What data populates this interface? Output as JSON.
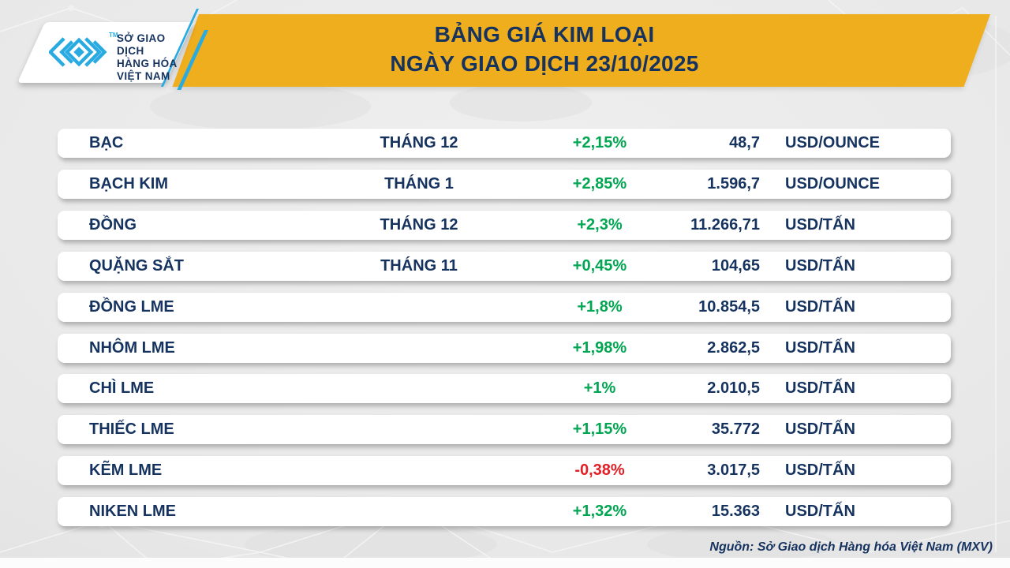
{
  "logo": {
    "org_line1": "SỞ GIAO DỊCH",
    "org_line2": "HÀNG HÓA",
    "org_line3": "VIỆT NAM",
    "tm": "TM"
  },
  "chart_data": {
    "type": "table",
    "title": "BẢNG GIÁ KIM LOẠI",
    "subtitle": "NGÀY GIAO DỊCH 23/10/2025",
    "legend_position": "none",
    "rows": [
      {
        "name": "BẠC",
        "month": "THÁNG 12",
        "change": "+2,15%",
        "price": "48,7",
        "unit": "USD/OUNCE",
        "direction": "up"
      },
      {
        "name": "BẠCH KIM",
        "month": "THÁNG 1",
        "change": "+2,85%",
        "price": "1.596,7",
        "unit": "USD/OUNCE",
        "direction": "up"
      },
      {
        "name": "ĐỒNG",
        "month": "THÁNG 12",
        "change": "+2,3%",
        "price": "11.266,71",
        "unit": "USD/TẤN",
        "direction": "up"
      },
      {
        "name": "QUẶNG SẮT",
        "month": "THÁNG 11",
        "change": "+0,45%",
        "price": "104,65",
        "unit": "USD/TẤN",
        "direction": "up"
      },
      {
        "name": "ĐỒNG LME",
        "month": "",
        "change": "+1,8%",
        "price": "10.854,5",
        "unit": "USD/TẤN",
        "direction": "up"
      },
      {
        "name": "NHÔM LME",
        "month": "",
        "change": "+1,98%",
        "price": "2.862,5",
        "unit": "USD/TẤN",
        "direction": "up"
      },
      {
        "name": "CHÌ LME",
        "month": "",
        "change": "+1%",
        "price": "2.010,5",
        "unit": "USD/TẤN",
        "direction": "up"
      },
      {
        "name": "THIẾC LME",
        "month": "",
        "change": "+1,15%",
        "price": "35.772",
        "unit": "USD/TẤN",
        "direction": "up"
      },
      {
        "name": "KẼM LME",
        "month": "",
        "change": "-0,38%",
        "price": "3.017,5",
        "unit": "USD/TẤN",
        "direction": "down"
      },
      {
        "name": "NIKEN LME",
        "month": "",
        "change": "+1,32%",
        "price": "15.363",
        "unit": "USD/TẤN",
        "direction": "up"
      }
    ]
  },
  "footer": {
    "source": "Nguồn: Sở Giao dịch Hàng hóa Việt Nam (MXV)"
  },
  "colors": {
    "navy": "#16335F",
    "green": "#00A651",
    "red": "#E31E24",
    "yellow": "#EFAE1D",
    "cyan": "#29ABE2",
    "bg": "#E8E8E8"
  }
}
